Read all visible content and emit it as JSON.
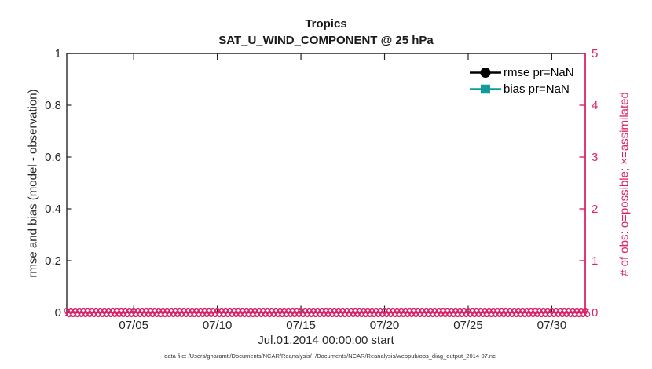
{
  "title": {
    "line1": "Tropics",
    "line2": "SAT_U_WIND_COMPONENT @ 25 hPa"
  },
  "axes": {
    "left": {
      "label": "rmse and bias (model - observation)",
      "tick_labels": [
        "0",
        "0.2",
        "0.4",
        "0.6",
        "0.8",
        "1"
      ]
    },
    "right": {
      "label": "# of obs: o=possible; ×=assimilated",
      "tick_labels": [
        "0",
        "1",
        "2",
        "3",
        "4",
        "5"
      ]
    },
    "x": {
      "label": "Jul.01,2014 00:00:00 start",
      "tick_labels": [
        "07/05",
        "07/10",
        "07/15",
        "07/20",
        "07/25",
        "07/30"
      ]
    }
  },
  "legend": {
    "entries": [
      {
        "label": "rmse pr=NaN",
        "marker": "filled-circle-on-line",
        "color": "#000000"
      },
      {
        "label": "bias pr=NaN",
        "marker": "filled-square-on-line",
        "color": "#119c9c"
      }
    ]
  },
  "footnote": "data file: /Users/gharamti/Documents/NCAR/Reanalysis/~/Documents/NCAR/Reanalysis/webpub/obs_diag_output_2014-07.nc",
  "colors": {
    "axis_text": "#262626",
    "obs_pink": "#de2268",
    "bias_teal": "#119c9c",
    "rmse_black": "#000000",
    "background": "#ffffff"
  },
  "chart_data": {
    "type": "line",
    "title": "Tropics",
    "subtitle": "SAT_U_WIND_COMPONENT @ 25 hPa",
    "xlabel": "Jul.01,2014 00:00:00 start",
    "x_unit": "day of July 2014 (tick 07/05 = day 5)",
    "xlim_days": [
      1,
      32
    ],
    "xticks": [
      {
        "day": 5,
        "label": "07/05"
      },
      {
        "day": 10,
        "label": "07/10"
      },
      {
        "day": 15,
        "label": "07/15"
      },
      {
        "day": 20,
        "label": "07/20"
      },
      {
        "day": 25,
        "label": "07/25"
      },
      {
        "day": 30,
        "label": "07/30"
      }
    ],
    "left_axis": {
      "label": "rmse and bias (model - observation)",
      "ylim": [
        0,
        1
      ],
      "ticks": [
        0,
        0.2,
        0.4,
        0.6,
        0.8,
        1
      ]
    },
    "right_axis": {
      "label": "# of obs: o=possible; ×=assimilated",
      "ylim": [
        0,
        5
      ],
      "ticks": [
        0,
        1,
        2,
        3,
        4,
        5
      ]
    },
    "grid": false,
    "legend_position": "top-right inside, no box",
    "series": [
      {
        "name": "rmse pr=NaN",
        "axis": "left",
        "color": "#000000",
        "marker": "filled-circle",
        "values": "all NaN — no curve plotted"
      },
      {
        "name": "bias pr=NaN",
        "axis": "left",
        "color": "#119c9c",
        "marker": "filled-square",
        "values": "all NaN — no curve plotted"
      },
      {
        "name": "# of obs possible (o)",
        "axis": "right",
        "color": "#de2268",
        "marker": "o",
        "time_start_day": 1,
        "time_end_day": 32,
        "time_step_days": 0.25,
        "value_at_all_times": 0
      },
      {
        "name": "# of obs assimilated (x)",
        "axis": "right",
        "color": "#de2268",
        "marker": "x",
        "time_start_day": 1,
        "time_end_day": 32,
        "time_step_days": 0.25,
        "value_at_all_times": 0
      }
    ]
  }
}
